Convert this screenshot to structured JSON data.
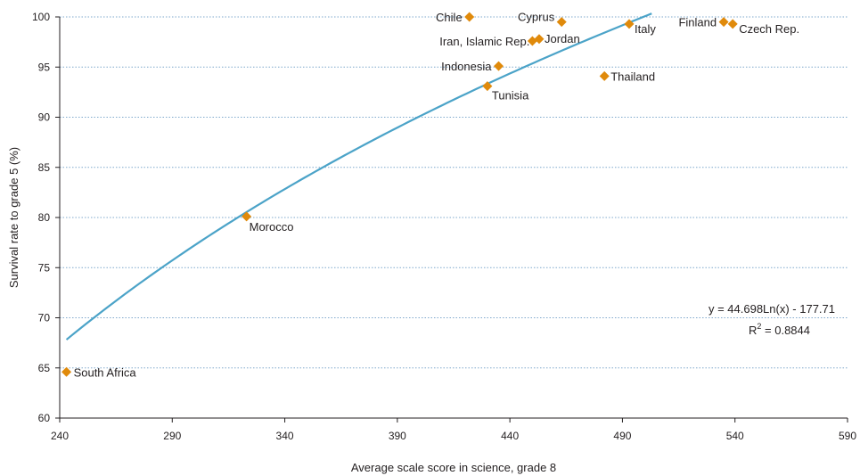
{
  "chart_data": {
    "type": "scatter",
    "xlabel": "Average scale score in science, grade 8",
    "ylabel": "Survival rate to grade 5 (%)",
    "xlim": [
      240,
      590
    ],
    "ylim": [
      60,
      100
    ],
    "x_ticks": [
      "240",
      "290",
      "340",
      "390",
      "440",
      "490",
      "540",
      "590"
    ],
    "y_ticks": [
      "60",
      "65",
      "70",
      "75",
      "80",
      "85",
      "90",
      "95",
      "100"
    ],
    "grid": "horizontal dotted",
    "colors": {
      "marker": "#e08a0b",
      "trend": "#4ba3c8",
      "grid": "#7fa8cc"
    },
    "points": [
      {
        "label": "South Africa",
        "x": 243,
        "y": 64.6
      },
      {
        "label": "Morocco",
        "x": 323,
        "y": 80.1
      },
      {
        "label": "Tunisia",
        "x": 430,
        "y": 93.1
      },
      {
        "label": "Indonesia",
        "x": 435,
        "y": 95.1
      },
      {
        "label": "Chile",
        "x": 422,
        "y": 100.0
      },
      {
        "label": "Iran, Islamic Rep.",
        "x": 450,
        "y": 97.6
      },
      {
        "label": "Jordan",
        "x": 453,
        "y": 97.8
      },
      {
        "label": "Cyprus",
        "x": 463,
        "y": 99.5
      },
      {
        "label": "Thailand",
        "x": 482,
        "y": 94.1
      },
      {
        "label": "Italy",
        "x": 493,
        "y": 99.3
      },
      {
        "label": "Finland",
        "x": 535,
        "y": 99.5
      },
      {
        "label": "Czech Rep.",
        "x": 539,
        "y": 99.3
      }
    ],
    "trendline": {
      "type": "logarithmic",
      "a": 44.698,
      "b": -177.71,
      "x_range": [
        243,
        503
      ],
      "equation": "y = 44.698Ln(x) - 177.71",
      "r2_label": "R",
      "r2_sup": "2",
      "r2_value": " = 0.8844"
    }
  }
}
